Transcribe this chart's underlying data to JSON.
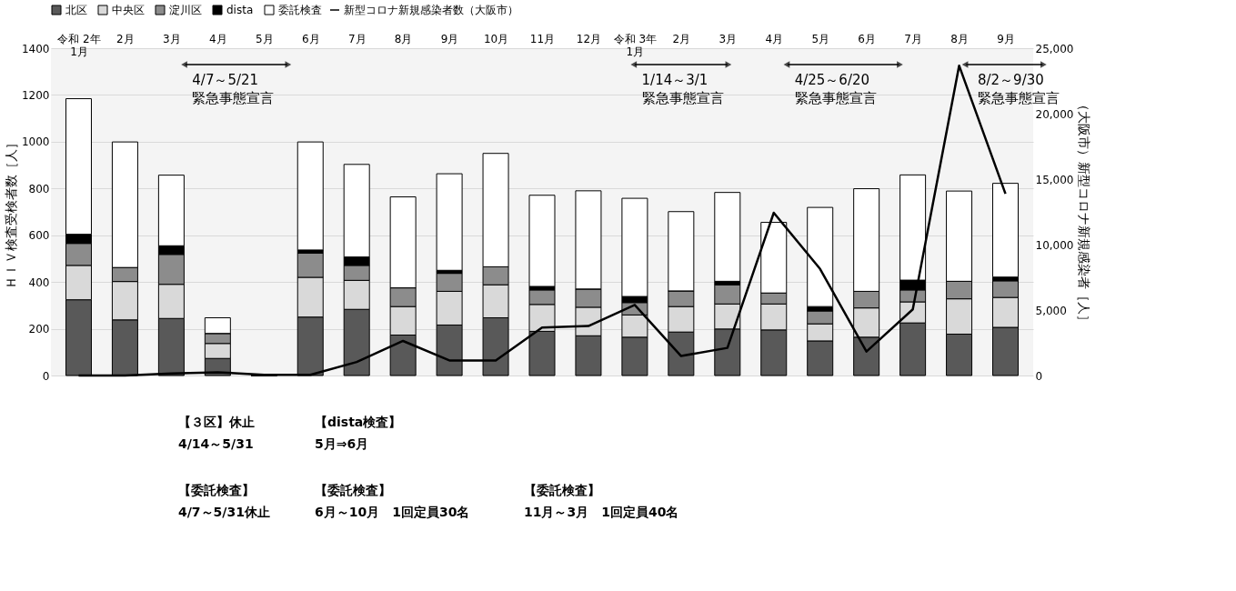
{
  "chart_data": {
    "type": "bar",
    "stacked": true,
    "categories": [
      "令和 2年\n1月",
      "2月",
      "3月",
      "4月",
      "5月",
      "6月",
      "7月",
      "8月",
      "9月",
      "10月",
      "11月",
      "12月",
      "令和 3年\n1月",
      "2月",
      "3月",
      "4月",
      "5月",
      "6月",
      "7月",
      "8月",
      "9月"
    ],
    "series": [
      {
        "name": "北区",
        "color": "#595959",
        "values": [
          324,
          238,
          244,
          73,
          0,
          250,
          283,
          173,
          216,
          247,
          189,
          170,
          164,
          186,
          199,
          195,
          148,
          164,
          225,
          177,
          206
        ]
      },
      {
        "name": "中央区",
        "color": "#d9d9d9",
        "values": [
          147,
          164,
          146,
          64,
          0,
          170,
          124,
          122,
          144,
          141,
          115,
          122,
          95,
          109,
          107,
          111,
          73,
          125,
          90,
          151,
          128
        ]
      },
      {
        "name": "淀川区",
        "color": "#8c8c8c",
        "values": [
          94,
          60,
          128,
          43,
          0,
          103,
          64,
          80,
          77,
          77,
          62,
          78,
          53,
          67,
          82,
          47,
          55,
          71,
          51,
          75,
          71
        ]
      },
      {
        "name": "dista",
        "color": "#000000",
        "values": [
          39,
          0,
          37,
          0,
          0,
          14,
          36,
          0,
          13,
          0,
          15,
          0,
          26,
          0,
          15,
          0,
          19,
          0,
          42,
          0,
          16
        ]
      },
      {
        "name": "委託検査",
        "color": "#ffffff",
        "values": [
          580,
          537,
          302,
          67,
          0,
          462,
          396,
          389,
          413,
          485,
          390,
          420,
          420,
          339,
          380,
          302,
          424,
          439,
          450,
          386,
          401
        ]
      },
      {
        "name": "新型コロナ新規感染者数（大阪市）",
        "type": "line",
        "axis": "y2",
        "color": "#000000",
        "values": [
          0,
          0,
          150,
          250,
          50,
          50,
          1030,
          2640,
          1150,
          1150,
          3670,
          3780,
          5390,
          1490,
          2110,
          12430,
          8140,
          1830,
          5050,
          23670,
          13880
        ]
      }
    ],
    "ylabel": "ＨＩＶ検査受検者数［人］",
    "y2label": "（大阪市）新型コロナ新規感染者［人］",
    "ylim": [
      0,
      1400
    ],
    "yticks": [
      0,
      200,
      400,
      600,
      800,
      1000,
      1200,
      1400
    ],
    "y2lim": [
      0,
      25000
    ],
    "y2ticks": [
      0,
      {
        "value": 5000,
        "label": "5,000"
      },
      {
        "value": 10000,
        "label": "10,000"
      },
      {
        "value": 15000,
        "label": "15,000"
      },
      {
        "value": 20000,
        "label": "20,000"
      },
      {
        "value": 25000,
        "label": "25,000"
      }
    ],
    "grid": "y",
    "legend": "top",
    "annotations": [
      "4/7～5/21\n緊急事態宣言",
      "1/14～3/1\n緊急事態宣言",
      "4/25～6/20\n緊急事態宣言",
      "8/2～9/30\n緊急事態宣言",
      "【３区】休止\n4/14～5/31",
      "【dista検査】\n5月⇒6月",
      "【委託検査】\n4/7～5/31休止",
      "【委託検査】\n6月～10月　1回定員30名",
      "【委託検査】\n11月～3月　1回定員40名"
    ]
  }
}
